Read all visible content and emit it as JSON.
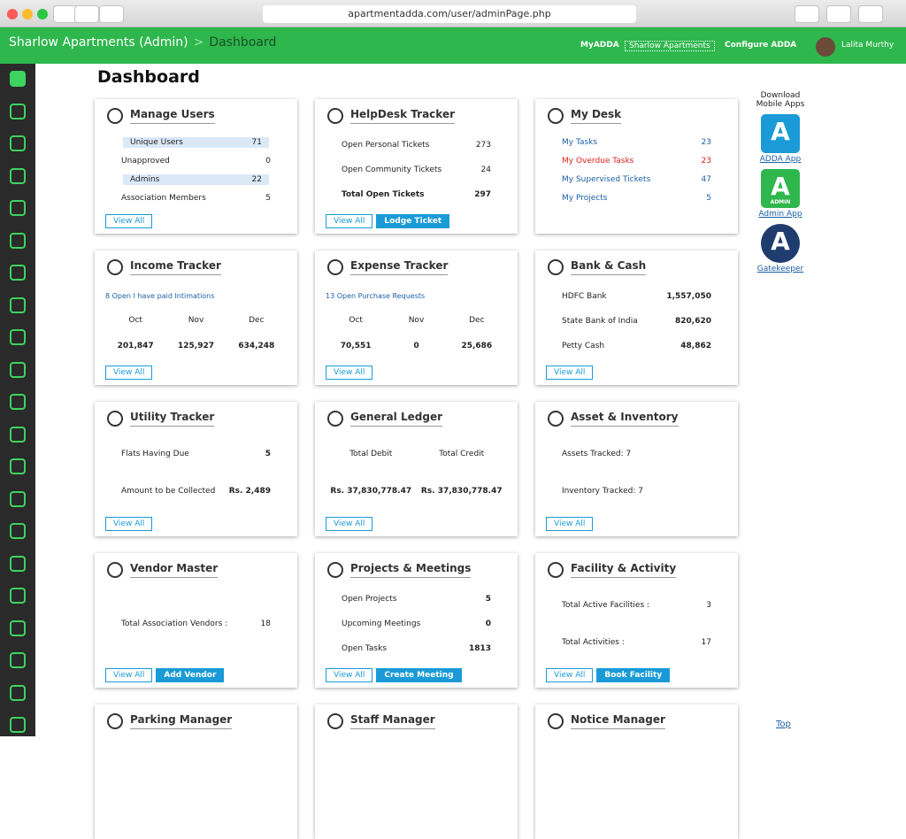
{
  "browser": {
    "url": "apartmentadda.com/user/adminPage.php"
  },
  "header": {
    "title": "Sharlow Apartments (Admin)",
    "separator": ">",
    "page": "Dashboard",
    "nav": [
      "MyADDA",
      "Sharlow Apartments",
      "Configure ADDA"
    ],
    "user": "Lalita Murthy"
  },
  "page_title": "Dashboard",
  "cards": [
    {
      "title": "Manage Users",
      "rows": [
        {
          "label": "Unique Users",
          "value": "71",
          "style": "highlight"
        },
        {
          "label": "Unapproved",
          "value": "0"
        },
        {
          "label": "Admins",
          "value": "22",
          "style": "highlight"
        },
        {
          "label": "Association Members",
          "value": "5"
        }
      ],
      "buttons": [
        "View All"
      ]
    },
    {
      "title": "HelpDesk Tracker",
      "rows": [
        {
          "label": "Open Personal Tickets",
          "value": "273"
        },
        {
          "label": "Open Community Tickets",
          "value": "24"
        },
        {
          "label": "Total Open Tickets",
          "value": "297",
          "style": "total"
        }
      ],
      "buttons": [
        "View All",
        "Lodge Ticket"
      ]
    },
    {
      "title": "My Desk",
      "rows": [
        {
          "label": "My Tasks",
          "value": "23",
          "style": "link"
        },
        {
          "label": "My Overdue Tasks",
          "value": "23",
          "style": "alert"
        },
        {
          "label": "My Supervised Tickets",
          "value": "47",
          "style": "link"
        },
        {
          "label": "My Projects",
          "value": "5",
          "style": "link"
        }
      ],
      "buttons": []
    },
    {
      "title": "Income Tracker",
      "link": "8 Open I have paid Intimations",
      "columns": {
        "headers": [
          "Oct",
          "Nov",
          "Dec"
        ],
        "values": [
          "201,847",
          "125,927",
          "634,248"
        ]
      },
      "buttons": [
        "View All"
      ]
    },
    {
      "title": "Expense Tracker",
      "link": "13 Open Purchase Requests",
      "columns": {
        "headers": [
          "Oct",
          "Nov",
          "Dec"
        ],
        "values": [
          "70,551",
          "0",
          "25,686"
        ]
      },
      "buttons": [
        "View All"
      ]
    },
    {
      "title": "Bank & Cash",
      "rows": [
        {
          "label": "HDFC Bank",
          "value": "1,557,050",
          "style": "value-bold"
        },
        {
          "label": "State Bank of India",
          "value": "820,620",
          "style": "value-bold"
        },
        {
          "label": "Petty Cash",
          "value": "48,862",
          "style": "value-bold"
        }
      ],
      "buttons": [
        "View All"
      ]
    },
    {
      "title": "Utility Tracker",
      "rows": [
        {
          "label": "Flats Having Due",
          "value": "5",
          "style": "value-bold"
        },
        {
          "label": "Amount to be Collected",
          "value": "Rs. 2,489",
          "style": "value-bold"
        }
      ],
      "buttons": [
        "View All"
      ]
    },
    {
      "title": "General Ledger",
      "columns": {
        "headers": [
          "Total Debit",
          "Total Credit"
        ],
        "values": [
          "Rs. 37,830,778.47",
          "Rs. 37,830,778.47"
        ]
      },
      "buttons": [
        "View All"
      ]
    },
    {
      "title": "Asset & Inventory",
      "rows": [
        {
          "label": "Assets Tracked: 7"
        },
        {
          "label": "Inventory Tracked: 7"
        }
      ],
      "buttons": [
        "View All"
      ]
    },
    {
      "title": "Vendor Master",
      "rows": [
        {
          "label": "Total Association Vendors :",
          "value": "18"
        }
      ],
      "buttons": [
        "View All",
        "Add Vendor"
      ]
    },
    {
      "title": "Projects & Meetings",
      "rows": [
        {
          "label": "Open Projects",
          "value": "5",
          "style": "value-bold"
        },
        {
          "label": "Upcoming Meetings",
          "value": "0",
          "style": "value-bold"
        },
        {
          "label": "Open Tasks",
          "value": "1813",
          "style": "value-bold"
        }
      ],
      "buttons": [
        "View All",
        "Create Meeting"
      ]
    },
    {
      "title": "Facility & Activity",
      "rows": [
        {
          "label": "Total Active Facilities :",
          "value": "3"
        },
        {
          "label": "Total Activities :",
          "value": "17"
        }
      ],
      "buttons": [
        "View All",
        "Book Facility"
      ]
    },
    {
      "title": "Parking Manager",
      "rows": [],
      "buttons": []
    },
    {
      "title": "Staff Manager",
      "rows": [],
      "buttons": []
    },
    {
      "title": "Notice Manager",
      "rows": [],
      "buttons": []
    }
  ],
  "apps": {
    "heading": "Download Mobile Apps",
    "items": [
      {
        "label": "ADDA App"
      },
      {
        "label": "Admin App",
        "badge": "ADMIN"
      },
      {
        "label": "Gatekeeper"
      }
    ]
  },
  "top_link": "Top"
}
